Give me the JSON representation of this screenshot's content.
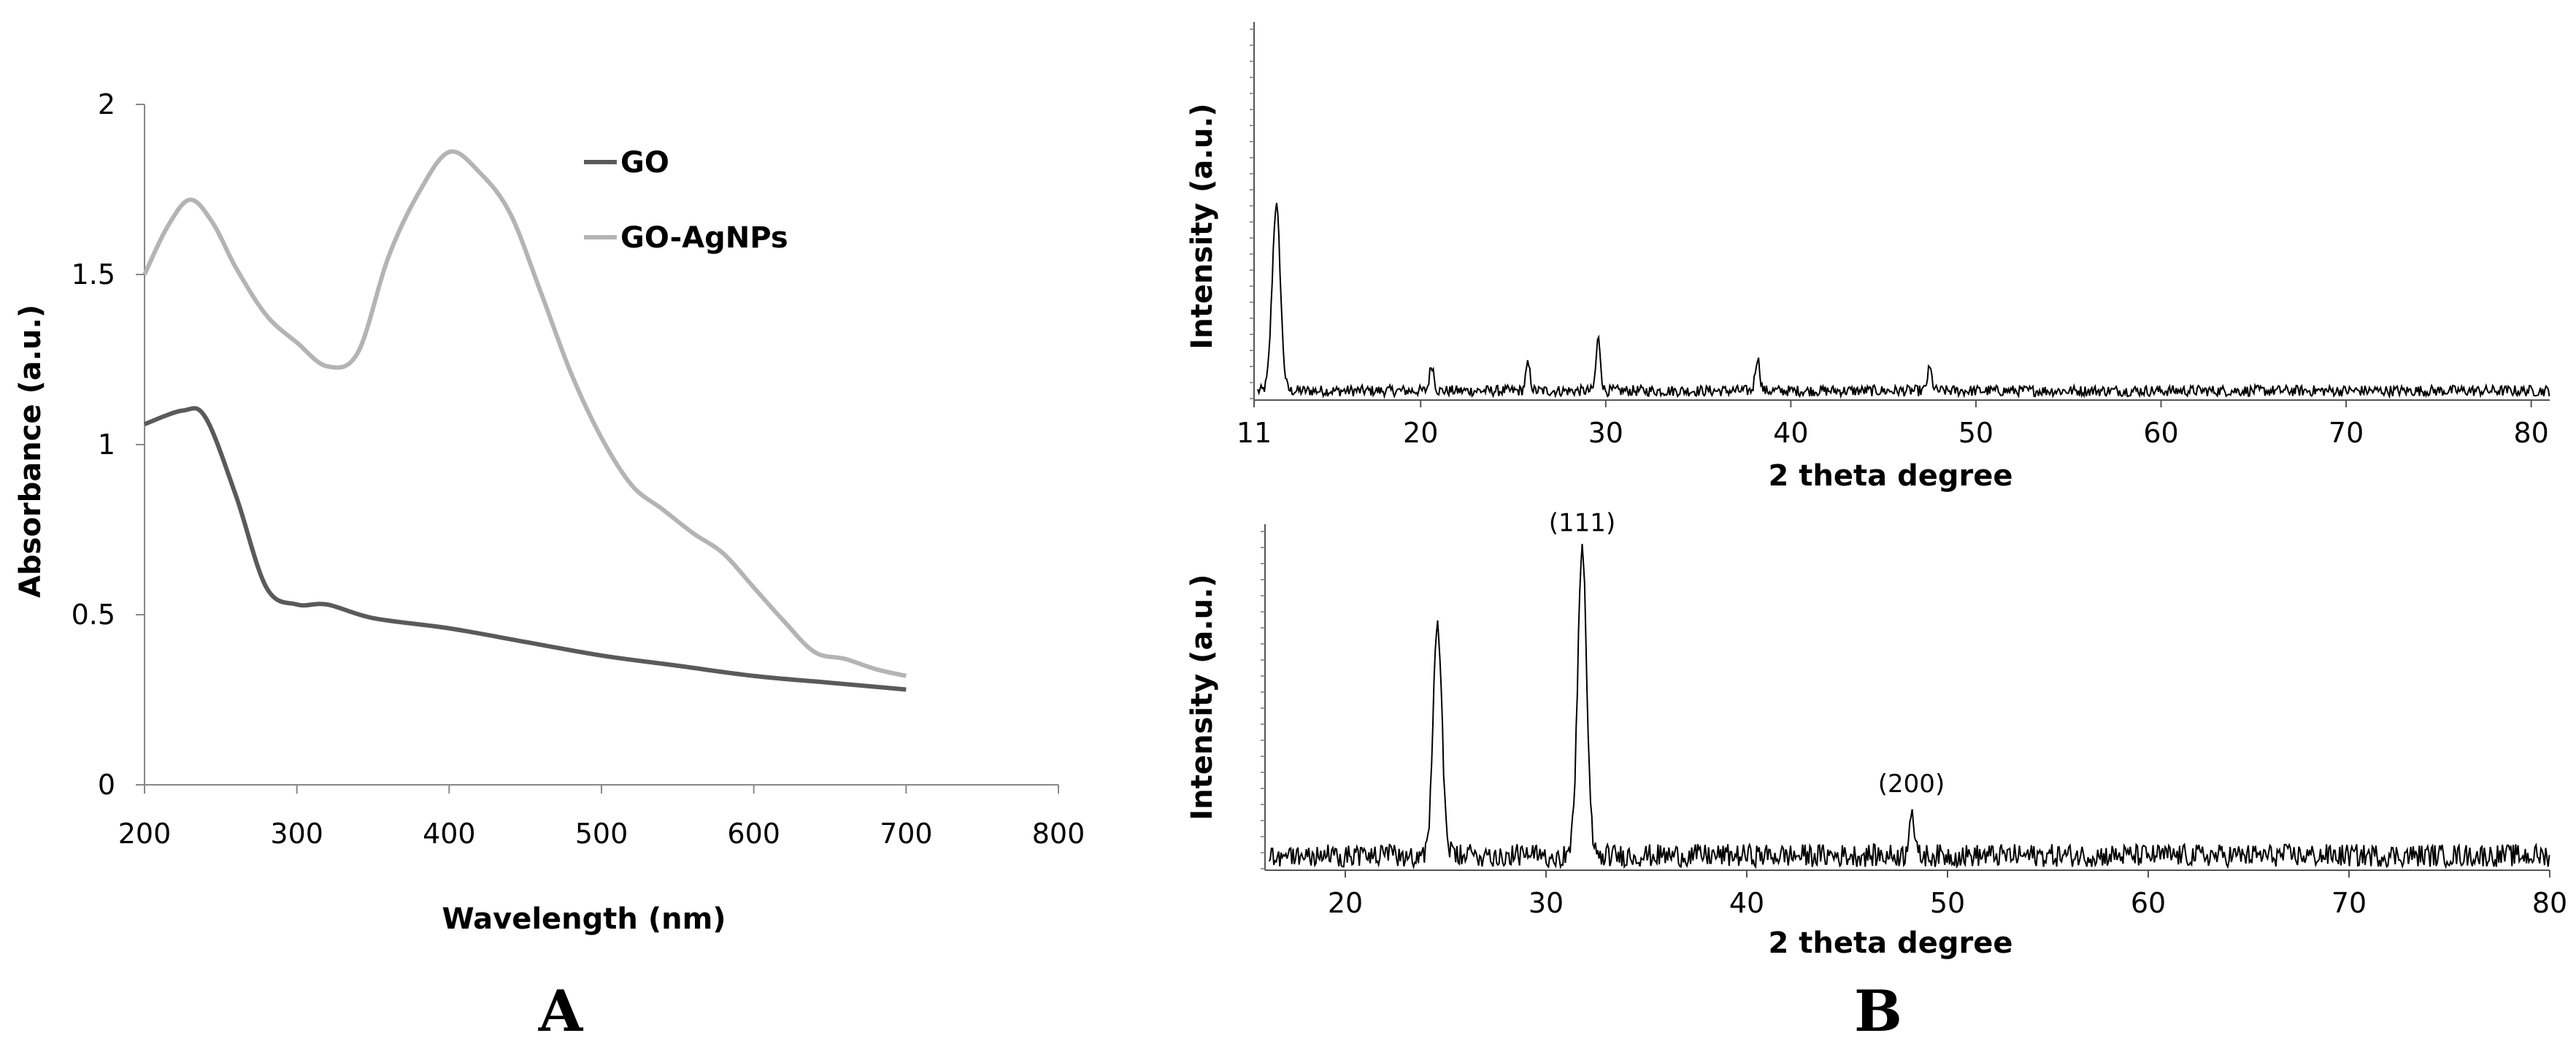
{
  "panels": {
    "A": {
      "label": "A"
    },
    "B": {
      "label": "B"
    }
  },
  "chart_data": [
    {
      "type": "line",
      "title": "",
      "xlabel": "Wavelength (nm)",
      "ylabel": "Absorbance (a.u.)",
      "xlim": [
        200,
        800
      ],
      "ylim": [
        0,
        2
      ],
      "xticks": [
        200,
        300,
        400,
        500,
        600,
        700,
        800
      ],
      "yticks": [
        0,
        0.5,
        1,
        1.5,
        2
      ],
      "ytick_labels": [
        "0",
        "0.5",
        "1",
        "1.5",
        "2"
      ],
      "grid": false,
      "legend": "top-center",
      "series": [
        {
          "name": "GO",
          "color": "#5a5a5a",
          "x": [
            200,
            225,
            240,
            260,
            280,
            300,
            320,
            350,
            400,
            450,
            500,
            550,
            600,
            650,
            700
          ],
          "y": [
            1.06,
            1.1,
            1.08,
            0.85,
            0.58,
            0.53,
            0.53,
            0.49,
            0.46,
            0.42,
            0.38,
            0.35,
            0.32,
            0.3,
            0.28
          ]
        },
        {
          "name": "GO-AgNPs",
          "color": "#b4b4b4",
          "x": [
            200,
            215,
            230,
            245,
            260,
            280,
            300,
            320,
            340,
            360,
            380,
            400,
            420,
            440,
            460,
            480,
            500,
            520,
            540,
            560,
            580,
            600,
            620,
            640,
            660,
            680,
            700
          ],
          "y": [
            1.5,
            1.64,
            1.72,
            1.65,
            1.52,
            1.38,
            1.3,
            1.23,
            1.27,
            1.55,
            1.74,
            1.86,
            1.8,
            1.68,
            1.45,
            1.21,
            1.02,
            0.88,
            0.81,
            0.74,
            0.68,
            0.58,
            0.48,
            0.39,
            0.37,
            0.34,
            0.32
          ]
        }
      ]
    },
    {
      "type": "line",
      "title": "",
      "xlabel": "2 theta degree",
      "ylabel": "Intensity (a.u.)",
      "xlim": [
        11,
        81
      ],
      "xticks": [
        11,
        20,
        30,
        40,
        50,
        60,
        70,
        80
      ],
      "ylim": [
        0,
        1
      ],
      "grid": false,
      "noise_level": 0.03,
      "series": [
        {
          "name": "",
          "color": "#000000",
          "peaks": [
            {
              "x": 12.2,
              "y": 0.5
            },
            {
              "x": 20.6,
              "y": 0.07
            },
            {
              "x": 25.8,
              "y": 0.07
            },
            {
              "x": 29.6,
              "y": 0.14
            },
            {
              "x": 38.2,
              "y": 0.09
            },
            {
              "x": 47.5,
              "y": 0.06
            }
          ]
        }
      ]
    },
    {
      "type": "line",
      "title": "",
      "xlabel": "2 theta degree",
      "ylabel": "Intensity (a.u.)",
      "xlim": [
        16,
        80
      ],
      "xticks": [
        20,
        30,
        40,
        50,
        60,
        70,
        80
      ],
      "ylim": [
        0,
        1
      ],
      "grid": false,
      "noise_level": 0.07,
      "series": [
        {
          "name": "",
          "color": "#000000",
          "peaks": [
            {
              "x": 24.6,
              "y": 0.7
            },
            {
              "x": 31.8,
              "y": 0.95
            },
            {
              "x": 48.2,
              "y": 0.15
            }
          ]
        }
      ],
      "annotations": [
        {
          "text": "(111)",
          "x": 31.8,
          "y": 0.95
        },
        {
          "text": "(200)",
          "x": 48.2,
          "y": 0.15
        }
      ]
    }
  ]
}
